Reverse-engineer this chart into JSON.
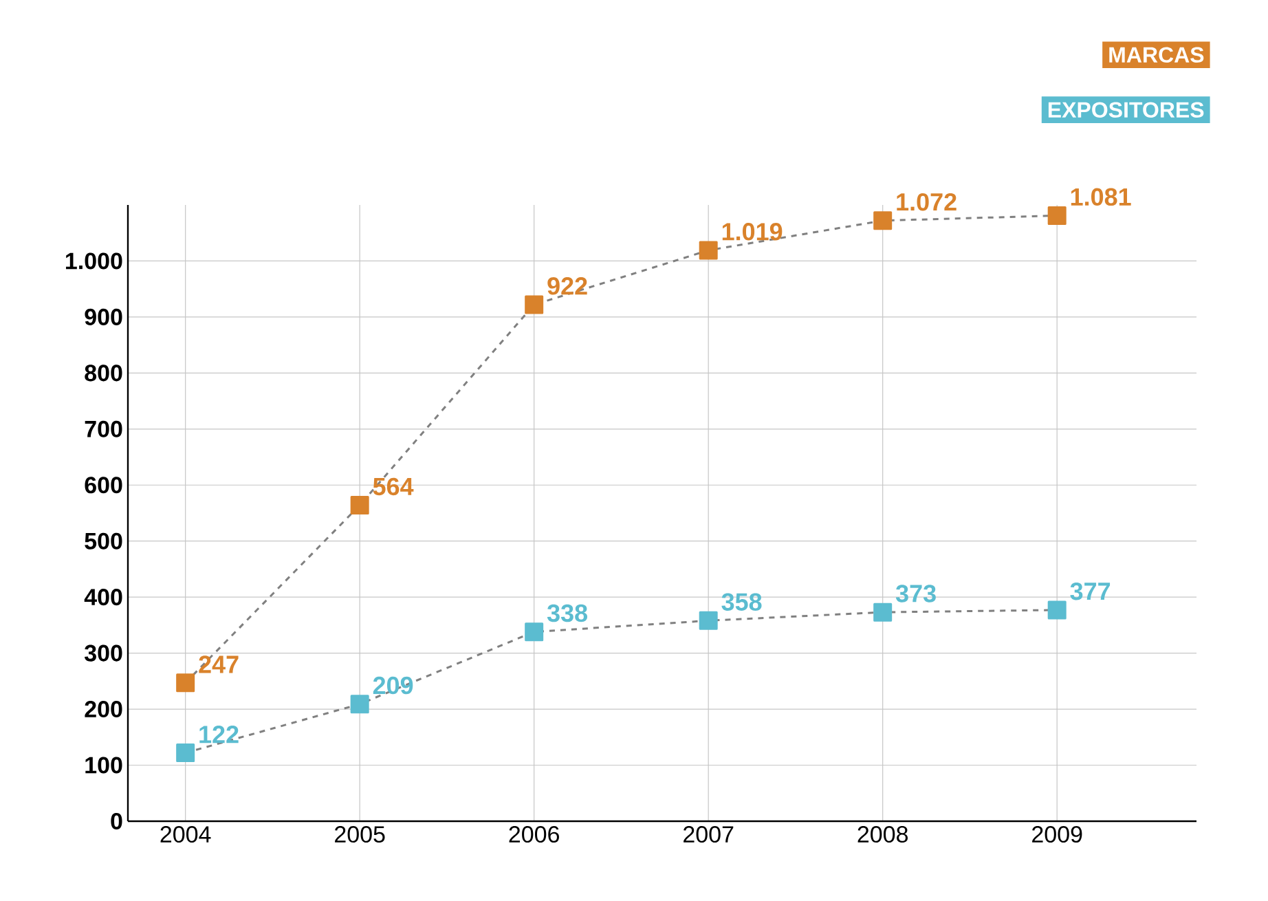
{
  "chart_data": {
    "type": "line",
    "categories": [
      "2004",
      "2005",
      "2006",
      "2007",
      "2008",
      "2009"
    ],
    "series": [
      {
        "name": "MARCAS",
        "color": "#d9822b",
        "values": [
          247,
          564,
          922,
          1019,
          1072,
          1081
        ],
        "value_labels": [
          "247",
          "564",
          "922",
          "1.019",
          "1.072",
          "1.081"
        ]
      },
      {
        "name": "EXPOSITORES",
        "color": "#5bbcd0",
        "values": [
          122,
          209,
          338,
          358,
          373,
          377
        ],
        "value_labels": [
          "122",
          "209",
          "338",
          "358",
          "373",
          "377"
        ]
      }
    ],
    "ylim": [
      0,
      1100
    ],
    "yticks": [
      0,
      100,
      200,
      300,
      400,
      500,
      600,
      700,
      800,
      900,
      {
        "value": 1000,
        "label": "1.000"
      }
    ],
    "grid": true,
    "legend": "top right",
    "marker": "square",
    "line_style": "dashed"
  }
}
